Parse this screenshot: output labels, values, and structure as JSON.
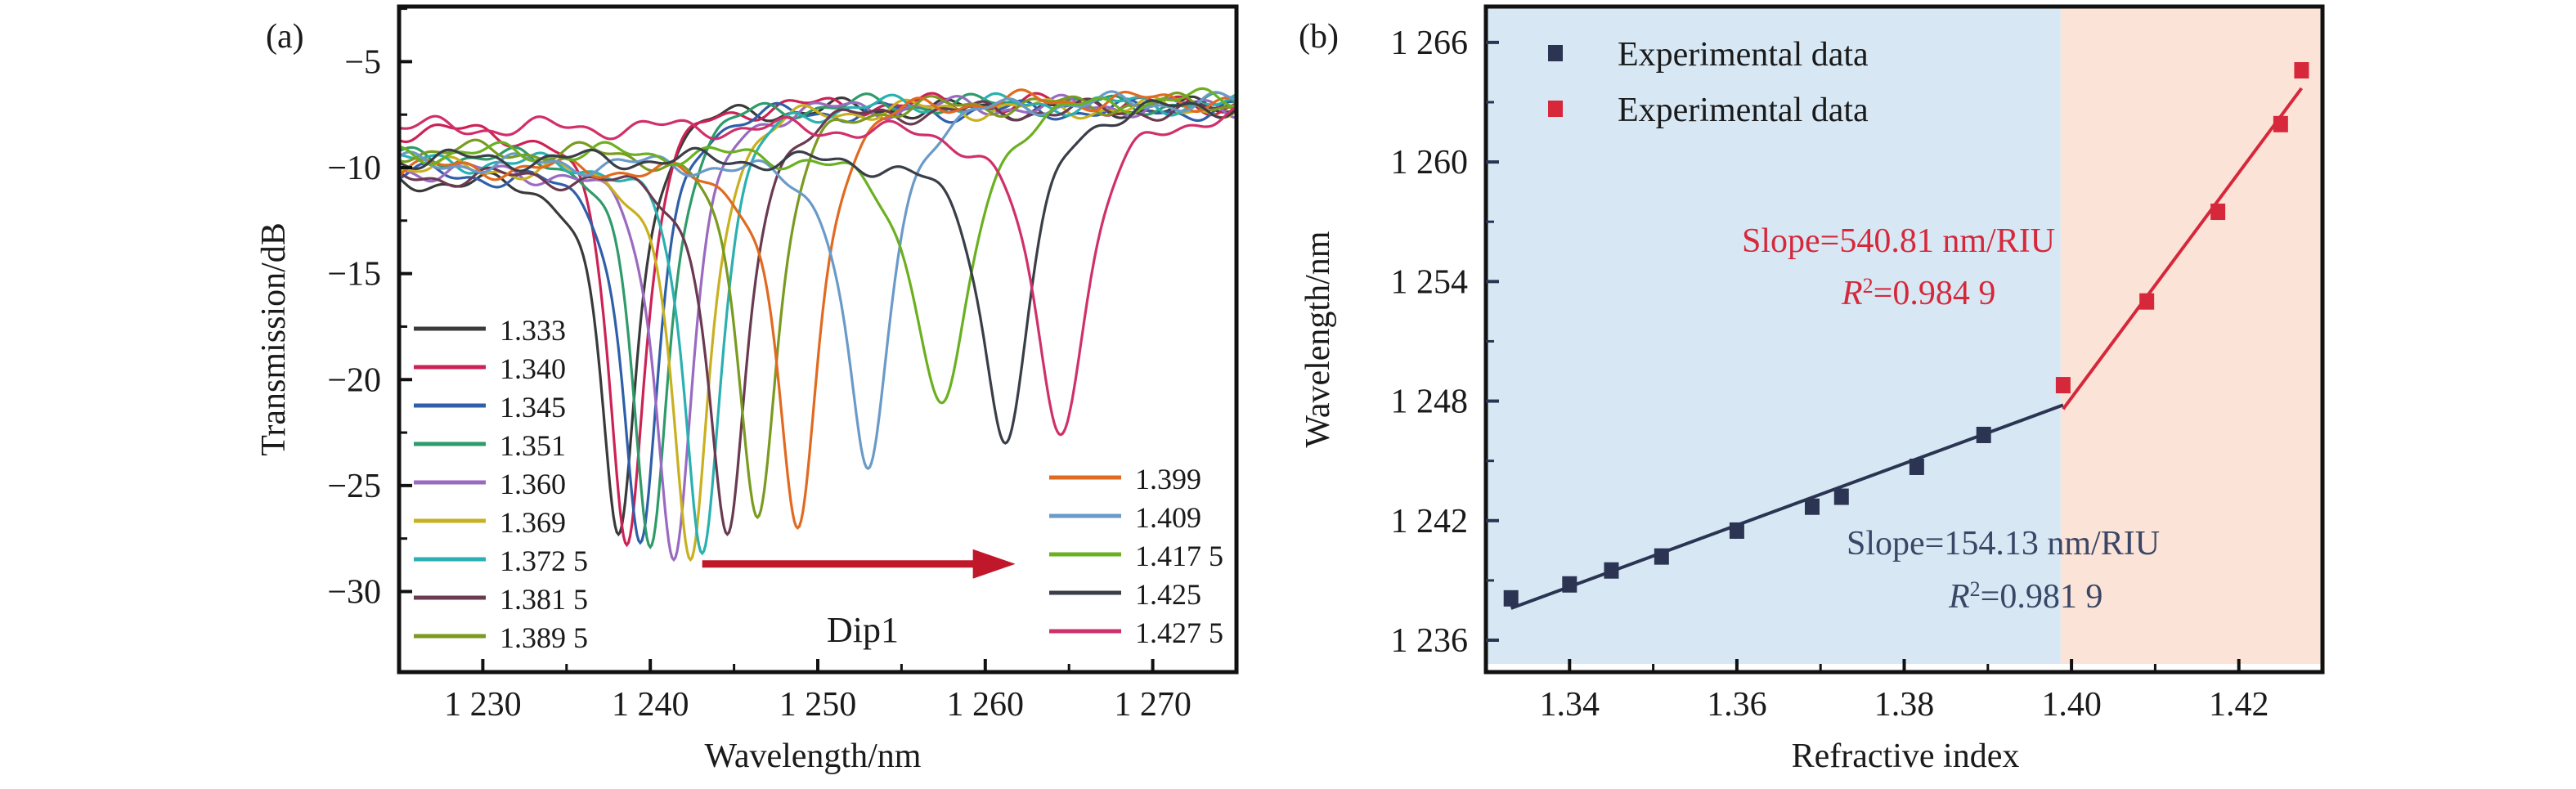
{
  "chart_data": [
    {
      "panel_label": "(a)",
      "type": "line",
      "title": "",
      "xlabel": "Wavelength/nm",
      "ylabel": "Transmission/dB",
      "xlim": [
        1225,
        1275
      ],
      "ylim": [
        -33.8,
        -2.4
      ],
      "xticks": [
        1230,
        1240,
        1250,
        1260,
        1270
      ],
      "xtick_labels": [
        "1 230",
        "1 240",
        "1 250",
        "1 260",
        "1 270"
      ],
      "yticks": [
        -5,
        -10,
        -15,
        -20,
        -25,
        -30
      ],
      "ytick_labels": [
        "−5",
        "−10",
        "−15",
        "−20",
        "−25",
        "−30"
      ],
      "grid": false,
      "annotation": {
        "text": "Dip1",
        "arrow_from_x": 1243.1,
        "arrow_to_x": 1261.8,
        "arrow_y": -28.7,
        "arrow_color": "#c0182a"
      },
      "legend_left": [
        "1.333",
        "1.340",
        "1.345",
        "1.351",
        "1.360",
        "1.369",
        "1.372 5",
        "1.381 5",
        "1.389 5"
      ],
      "legend_right": [
        "1.399",
        "1.409",
        "1.417 5",
        "1.425",
        "1.427 5"
      ],
      "series": [
        {
          "name": "1.333",
          "color": "#3a3a3a",
          "dip_wavelength": 1238.1,
          "dip_depth_db": -27.3,
          "baseline_left_db": -10.6,
          "baseline_right_db": -7.2,
          "fwhm_nm": 3.2
        },
        {
          "name": "1.340",
          "color": "#cc2255",
          "dip_wavelength": 1238.6,
          "dip_depth_db": -27.8,
          "baseline_left_db": -8.2,
          "baseline_right_db": -7.0,
          "fwhm_nm": 3.2
        },
        {
          "name": "1.345",
          "color": "#2f5fa8",
          "dip_wavelength": 1239.4,
          "dip_depth_db": -27.7,
          "baseline_left_db": -10.3,
          "baseline_right_db": -7.3,
          "fwhm_nm": 3.2
        },
        {
          "name": "1.351",
          "color": "#2f9a6a",
          "dip_wavelength": 1240.0,
          "dip_depth_db": -27.9,
          "baseline_left_db": -9.4,
          "baseline_right_db": -7.0,
          "fwhm_nm": 3.2
        },
        {
          "name": "1.360",
          "color": "#9a6ac0",
          "dip_wavelength": 1241.4,
          "dip_depth_db": -28.5,
          "baseline_left_db": -10.1,
          "baseline_right_db": -7.1,
          "fwhm_nm": 3.3
        },
        {
          "name": "1.369",
          "color": "#c9b020",
          "dip_wavelength": 1242.4,
          "dip_depth_db": -28.5,
          "baseline_left_db": -10.0,
          "baseline_right_db": -7.2,
          "fwhm_nm": 3.3
        },
        {
          "name": "1.372 5",
          "color": "#2ab0b0",
          "dip_wavelength": 1243.1,
          "dip_depth_db": -28.2,
          "baseline_left_db": -9.7,
          "baseline_right_db": -7.0,
          "fwhm_nm": 3.3
        },
        {
          "name": "1.381 5",
          "color": "#6a3a50",
          "dip_wavelength": 1244.6,
          "dip_depth_db": -27.3,
          "baseline_left_db": -10.4,
          "baseline_right_db": -7.3,
          "fwhm_nm": 3.4
        },
        {
          "name": "1.389 5",
          "color": "#7a9a20",
          "dip_wavelength": 1246.4,
          "dip_depth_db": -26.5,
          "baseline_left_db": -9.2,
          "baseline_right_db": -7.0,
          "fwhm_nm": 3.5
        },
        {
          "name": "1.399",
          "color": "#e06a20",
          "dip_wavelength": 1248.8,
          "dip_depth_db": -27.0,
          "baseline_left_db": -10.0,
          "baseline_right_db": -6.8,
          "fwhm_nm": 3.6
        },
        {
          "name": "1.409",
          "color": "#6a9ac8",
          "dip_wavelength": 1253.0,
          "dip_depth_db": -24.2,
          "baseline_left_db": -9.8,
          "baseline_right_db": -6.9,
          "fwhm_nm": 3.8
        },
        {
          "name": "1.417 5",
          "color": "#6ab020",
          "dip_wavelength": 1257.4,
          "dip_depth_db": -21.1,
          "baseline_left_db": -9.3,
          "baseline_right_db": -6.7,
          "fwhm_nm": 5.0
        },
        {
          "name": "1.425",
          "color": "#3a3e48",
          "dip_wavelength": 1261.2,
          "dip_depth_db": -23.0,
          "baseline_left_db": -9.6,
          "baseline_right_db": -7.0,
          "fwhm_nm": 4.2
        },
        {
          "name": "1.427 5",
          "color": "#d0306a",
          "dip_wavelength": 1264.5,
          "dip_depth_db": -22.6,
          "baseline_left_db": -8.1,
          "baseline_right_db": -7.4,
          "fwhm_nm": 4.6
        }
      ]
    },
    {
      "panel_label": "(b)",
      "type": "scatter",
      "title": "",
      "xlabel": "Refractive index",
      "ylabel": "Wavelength/nm",
      "xlim": [
        1.33,
        1.43
      ],
      "ylim": [
        1234.4,
        1267.8
      ],
      "xticks": [
        1.34,
        1.36,
        1.38,
        1.4,
        1.42
      ],
      "xtick_labels": [
        "1.34",
        "1.36",
        "1.38",
        "1.40",
        "1.42"
      ],
      "yticks": [
        1236,
        1242,
        1248,
        1254,
        1260,
        1266
      ],
      "ytick_labels": [
        "1 236",
        "1 242",
        "1 248",
        "1 254",
        "1 260",
        "1 266"
      ],
      "grid": false,
      "legend_position": "top-left",
      "regions": [
        {
          "name": "low-index region",
          "x_from": 1.33,
          "x_to": 1.3987,
          "color": "#d7e8f4"
        },
        {
          "name": "high-index region",
          "x_from": 1.3987,
          "x_to": 1.43,
          "color": "#fbe3d8"
        }
      ],
      "series": [
        {
          "name": "Experimental data",
          "color": "#2b3452",
          "x": [
            1.333,
            1.34,
            1.345,
            1.351,
            1.36,
            1.369,
            1.3725,
            1.3815,
            1.3895
          ],
          "y": [
            1238.1,
            1238.8,
            1239.5,
            1240.2,
            1241.5,
            1242.7,
            1243.2,
            1244.7,
            1246.3
          ],
          "fit": {
            "x": [
              1.333,
              1.399
            ],
            "y": [
              1237.6,
              1247.8
            ],
            "slope_label": "Slope=154.13 nm/RIU",
            "r2_prefix": "R",
            "r2_value": "=0.981 9"
          }
        },
        {
          "name": "Experimental data",
          "color": "#d6283a",
          "x": [
            1.399,
            1.409,
            1.4175,
            1.425,
            1.4275
          ],
          "y": [
            1248.8,
            1253.0,
            1257.5,
            1261.9,
            1264.6
          ],
          "fit": {
            "x": [
              1.399,
              1.4275
            ],
            "y": [
              1247.6,
              1263.7
            ],
            "slope_label": "Slope=540.81 nm/RIU",
            "r2_prefix": "R",
            "r2_value": "=0.984 9"
          }
        }
      ]
    }
  ]
}
